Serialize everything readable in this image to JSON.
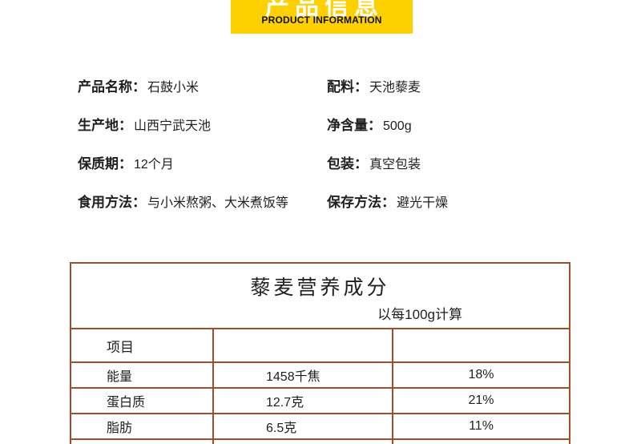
{
  "colors": {
    "banner_bg": "#fdd002",
    "banner_text_cn": "#ffffff",
    "banner_text_en": "#111111",
    "table_border": "#a24e28",
    "text": "#1f1f1f"
  },
  "banner": {
    "title_cn": "产品信息",
    "title_en": "PRODUCT INFORMATION"
  },
  "product_info": {
    "left": [
      {
        "label": "产品名称：",
        "value": "石鼓小米"
      },
      {
        "label": "生产地：",
        "value": "山西宁武天池"
      },
      {
        "label": "保质期：",
        "value": "12个月"
      },
      {
        "label": "食用方法：",
        "value": "与小米熬粥、大米煮饭等"
      }
    ],
    "right": [
      {
        "label": "配料：",
        "value": "天池藜麦"
      },
      {
        "label": "净含量：",
        "value": "500g"
      },
      {
        "label": "包装：",
        "value": "真空包装"
      },
      {
        "label": "保存方法：",
        "value": "避光干燥"
      }
    ]
  },
  "nutrition_table": {
    "title": "藜麦营养成分",
    "subtitle": "以每100g计算",
    "header": [
      "项目",
      "",
      ""
    ],
    "rows": [
      [
        "能量",
        "1458千焦",
        "18%"
      ],
      [
        "蛋白质",
        "12.7克",
        "21%"
      ],
      [
        "脂肪",
        "6.5克",
        "11%"
      ]
    ]
  }
}
